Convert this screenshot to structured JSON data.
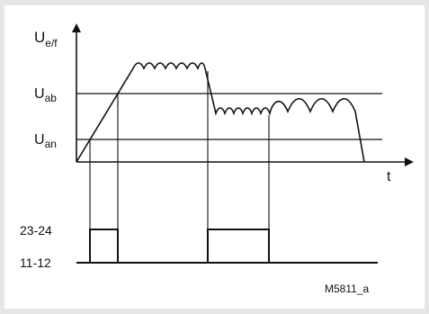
{
  "figure_id": "M5811_a",
  "axes": {
    "y_symbol_main": "U",
    "y_symbol_sub": "e/f",
    "x_label": "t"
  },
  "levels": [
    {
      "key": "ab",
      "main": "U",
      "sub": "ab"
    },
    {
      "key": "an",
      "main": "U",
      "sub": "an"
    }
  ],
  "relay_outputs": [
    {
      "label": "23-24",
      "state": "pulses high twice"
    },
    {
      "label": "11-12",
      "state": "baseline"
    }
  ],
  "colors": {
    "line": "#111111",
    "background": "#ffffff",
    "frame": "#e6e6e6"
  }
}
